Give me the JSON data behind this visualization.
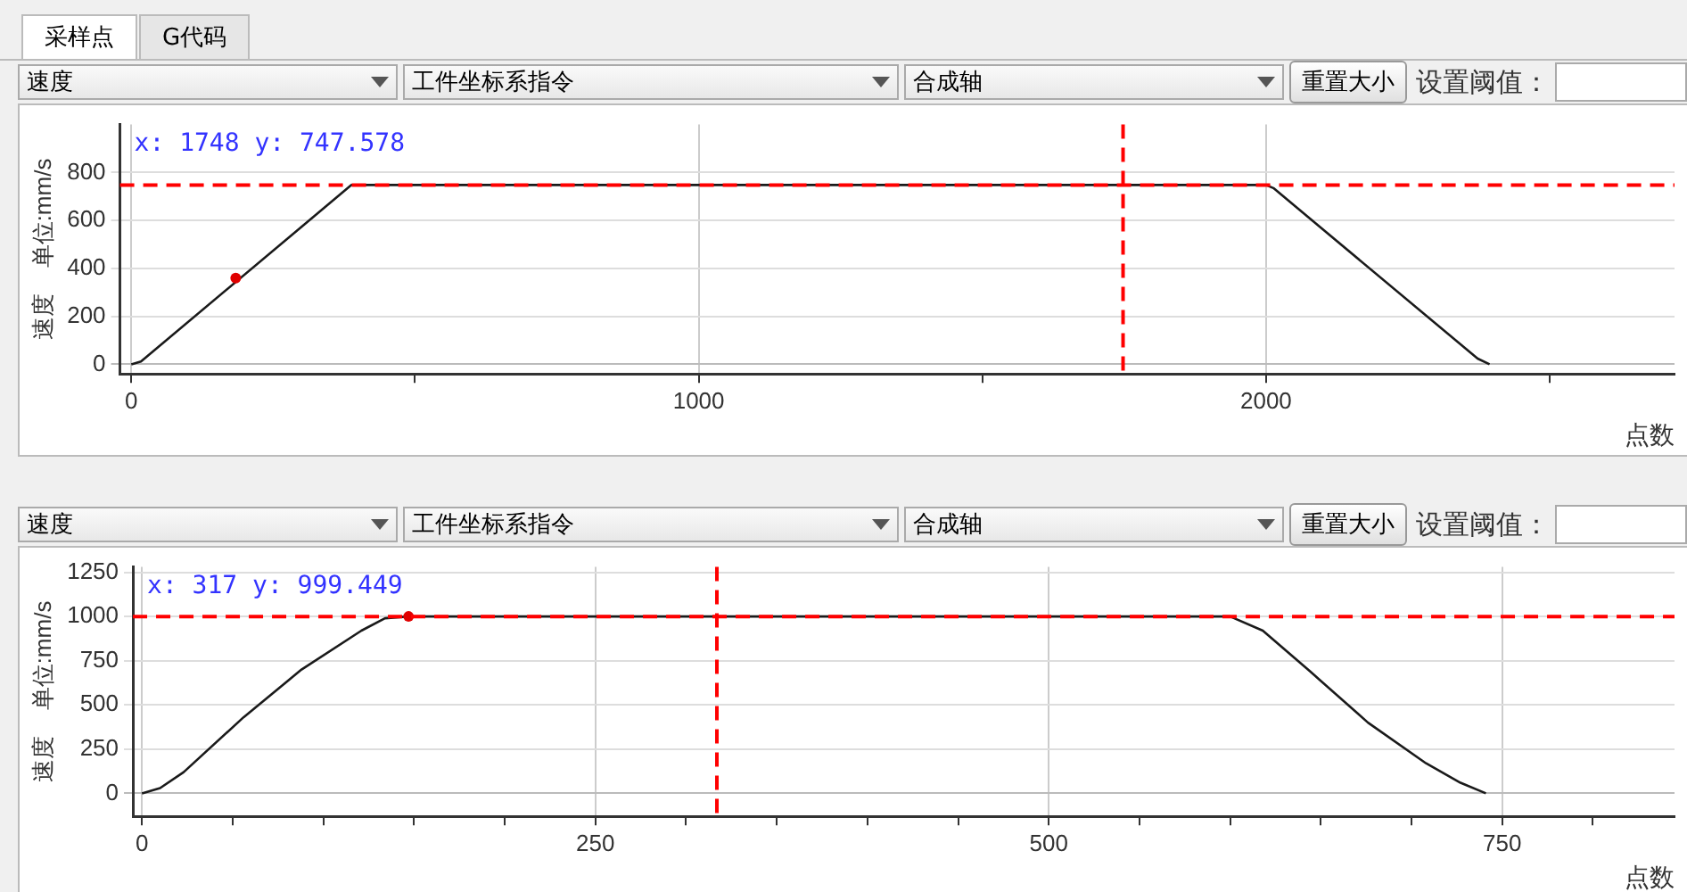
{
  "chart_data": [
    {
      "type": "line",
      "ylabel": "速度    单位:mm/s",
      "xlabel": "点数",
      "annotations": [
        "采样点",
        "G代码",
        "速度",
        "工件坐标系指令",
        "合成轴",
        "重置大小",
        "设置阈值：",
        "x: 1748 y: 747.578"
      ],
      "series": [
        {
          "type": "line",
          "color": "#1a1a1a",
          "marker": "none",
          "x": [
            0,
            17,
            388,
            2000,
            2013,
            2373,
            2394
          ],
          "values": [
            0,
            12,
            748,
            748,
            735,
            24,
            0
          ]
        },
        {
          "type": "scatter",
          "color": "#e00000",
          "marker": "circle",
          "x": [
            184
          ],
          "values": [
            360
          ]
        }
      ],
      "xlim": [
        -20,
        2720
      ],
      "xticks": [
        0,
        {
          "value": 500,
          "label": null
        },
        1000,
        {
          "value": 1500,
          "label": null
        },
        2000,
        {
          "value": 2500,
          "label": null
        }
      ],
      "ylim": [
        -40,
        1000
      ],
      "yticks": [
        0,
        200,
        400,
        600,
        800
      ],
      "ref_lines": [
        {
          "axis": "y",
          "value": 747.578,
          "color": "#ff0000",
          "line_style": "dashed"
        },
        {
          "axis": "x",
          "value": 1748,
          "color": "#ff0000",
          "line_style": "dashed"
        }
      ],
      "grid": true,
      "legend": false
    },
    {
      "type": "line",
      "ylabel": "速度    单位:mm/s",
      "xlabel": "点数",
      "annotations": [
        "速度",
        "工件坐标系指令",
        "合成轴",
        "重置大小",
        "设置阈值：",
        "x: 317 y: 999.449"
      ],
      "series": [
        {
          "type": "line",
          "color": "#1a1a1a",
          "marker": "none",
          "x": [
            0,
            10,
            23,
            56,
            88,
            121,
            134,
            147,
            600,
            618,
            644,
            676,
            708,
            727,
            741
          ],
          "values": [
            0,
            30,
            120,
            430,
            700,
            920,
            990,
            1000,
            1000,
            920,
            690,
            400,
            170,
            60,
            0
          ]
        },
        {
          "type": "scatter",
          "color": "#e00000",
          "marker": "circle",
          "x": [
            147
          ],
          "values": [
            1000
          ]
        }
      ],
      "xlim": [
        -5,
        845
      ],
      "xticks": [
        0,
        {
          "value": 50,
          "label": null
        },
        {
          "value": 100,
          "label": null
        },
        {
          "value": 150,
          "label": null
        },
        {
          "value": 200,
          "label": null
        },
        250,
        {
          "value": 300,
          "label": null
        },
        {
          "value": 350,
          "label": null
        },
        {
          "value": 400,
          "label": null
        },
        {
          "value": 450,
          "label": null
        },
        500,
        {
          "value": 550,
          "label": null
        },
        {
          "value": 600,
          "label": null
        },
        {
          "value": 650,
          "label": null
        },
        {
          "value": 700,
          "label": null
        },
        750,
        {
          "value": 800,
          "label": null
        }
      ],
      "ylim": [
        -130,
        1280
      ],
      "yticks": [
        0,
        250,
        500,
        750,
        1000,
        1250
      ],
      "ref_lines": [
        {
          "axis": "y",
          "value": 999.449,
          "color": "#ff0000",
          "line_style": "dashed"
        },
        {
          "axis": "x",
          "value": 317,
          "color": "#ff0000",
          "line_style": "dashed"
        }
      ],
      "grid": true,
      "legend": false
    }
  ]
}
